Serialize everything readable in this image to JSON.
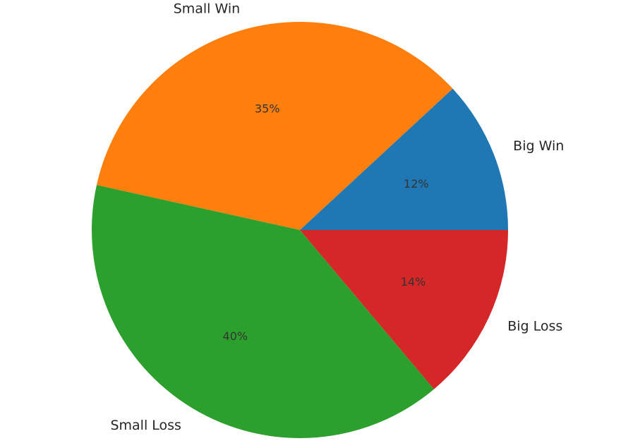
{
  "chart_data": {
    "type": "pie",
    "categories": [
      "Big Win",
      "Small Win",
      "Small Loss",
      "Big Loss"
    ],
    "values": [
      12,
      35,
      40,
      14
    ],
    "value_labels": [
      "12%",
      "35%",
      "40%",
      "14%"
    ],
    "colors": [
      "#1f77b4",
      "#ff7f0e",
      "#2ca02c",
      "#d62728"
    ]
  }
}
